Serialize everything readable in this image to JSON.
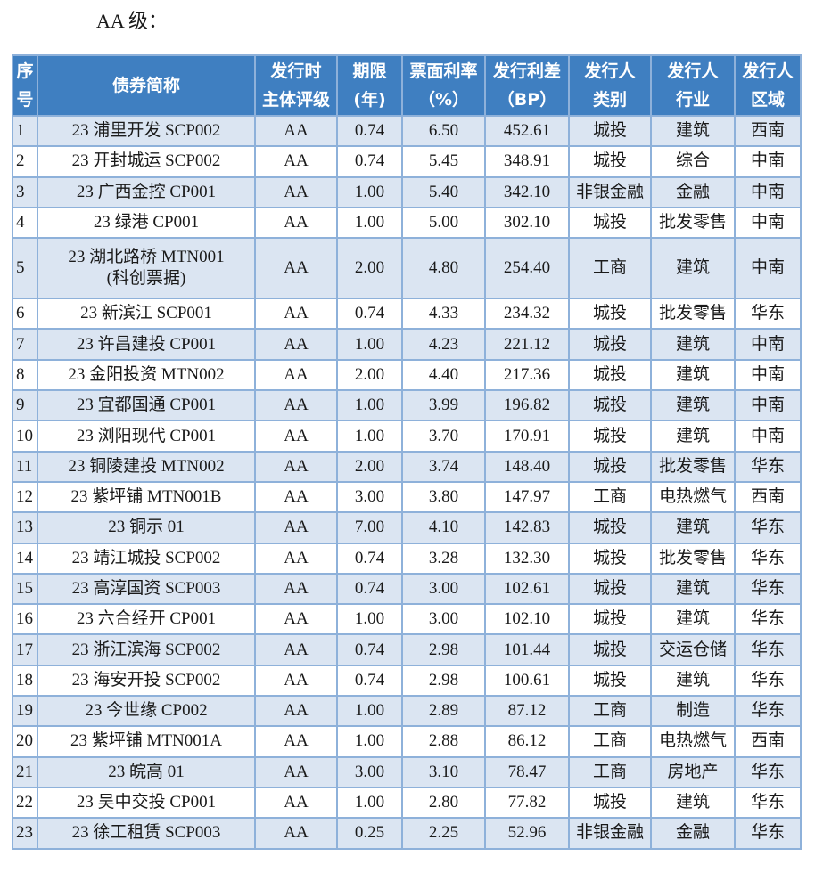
{
  "heading": "AA 级：",
  "table": {
    "headers": [
      {
        "line1": "序",
        "line2": "号"
      },
      {
        "line1": "债券简称",
        "line2": ""
      },
      {
        "line1": "发行时",
        "line2": "主体评级"
      },
      {
        "line1": "期限",
        "line2": "(年)"
      },
      {
        "line1": "票面利率",
        "line2": "（%）"
      },
      {
        "line1": "发行利差",
        "line2": "（BP）"
      },
      {
        "line1": "发行人",
        "line2": "类别"
      },
      {
        "line1": "发行人",
        "line2": "行业"
      },
      {
        "line1": "发行人",
        "line2": "区域"
      }
    ],
    "rows": [
      {
        "no": "1",
        "name": "23 浦里开发 SCP002",
        "name2": "",
        "rating": "AA",
        "term": "0.74",
        "coupon": "6.50",
        "spread": "452.61",
        "type": "城投",
        "industry": "建筑",
        "region": "西南"
      },
      {
        "no": "2",
        "name": "23 开封城运 SCP002",
        "name2": "",
        "rating": "AA",
        "term": "0.74",
        "coupon": "5.45",
        "spread": "348.91",
        "type": "城投",
        "industry": "综合",
        "region": "中南"
      },
      {
        "no": "3",
        "name": "23 广西金控 CP001",
        "name2": "",
        "rating": "AA",
        "term": "1.00",
        "coupon": "5.40",
        "spread": "342.10",
        "type": "非银金融",
        "industry": "金融",
        "region": "中南"
      },
      {
        "no": "4",
        "name": "23 绿港 CP001",
        "name2": "",
        "rating": "AA",
        "term": "1.00",
        "coupon": "5.00",
        "spread": "302.10",
        "type": "城投",
        "industry": "批发零售",
        "region": "中南"
      },
      {
        "no": "5",
        "name": "23 湖北路桥 MTN001",
        "name2": "(科创票据)",
        "rating": "AA",
        "term": "2.00",
        "coupon": "4.80",
        "spread": "254.40",
        "type": "工商",
        "industry": "建筑",
        "region": "中南"
      },
      {
        "no": "6",
        "name": "23 新滨江 SCP001",
        "name2": "",
        "rating": "AA",
        "term": "0.74",
        "coupon": "4.33",
        "spread": "234.32",
        "type": "城投",
        "industry": "批发零售",
        "region": "华东"
      },
      {
        "no": "7",
        "name": "23 许昌建投 CP001",
        "name2": "",
        "rating": "AA",
        "term": "1.00",
        "coupon": "4.23",
        "spread": "221.12",
        "type": "城投",
        "industry": "建筑",
        "region": "中南"
      },
      {
        "no": "8",
        "name": "23 金阳投资 MTN002",
        "name2": "",
        "rating": "AA",
        "term": "2.00",
        "coupon": "4.40",
        "spread": "217.36",
        "type": "城投",
        "industry": "建筑",
        "region": "中南"
      },
      {
        "no": "9",
        "name": "23 宜都国通 CP001",
        "name2": "",
        "rating": "AA",
        "term": "1.00",
        "coupon": "3.99",
        "spread": "196.82",
        "type": "城投",
        "industry": "建筑",
        "region": "中南"
      },
      {
        "no": "10",
        "name": "23 浏阳现代 CP001",
        "name2": "",
        "rating": "AA",
        "term": "1.00",
        "coupon": "3.70",
        "spread": "170.91",
        "type": "城投",
        "industry": "建筑",
        "region": "中南"
      },
      {
        "no": "11",
        "name": "23 铜陵建投 MTN002",
        "name2": "",
        "rating": "AA",
        "term": "2.00",
        "coupon": "3.74",
        "spread": "148.40",
        "type": "城投",
        "industry": "批发零售",
        "region": "华东"
      },
      {
        "no": "12",
        "name": "23 紫坪铺 MTN001B",
        "name2": "",
        "rating": "AA",
        "term": "3.00",
        "coupon": "3.80",
        "spread": "147.97",
        "type": "工商",
        "industry": "电热燃气",
        "region": "西南"
      },
      {
        "no": "13",
        "name": "23 铜示 01",
        "name2": "",
        "rating": "AA",
        "term": "7.00",
        "coupon": "4.10",
        "spread": "142.83",
        "type": "城投",
        "industry": "建筑",
        "region": "华东"
      },
      {
        "no": "14",
        "name": "23 靖江城投 SCP002",
        "name2": "",
        "rating": "AA",
        "term": "0.74",
        "coupon": "3.28",
        "spread": "132.30",
        "type": "城投",
        "industry": "批发零售",
        "region": "华东"
      },
      {
        "no": "15",
        "name": "23 高淳国资 SCP003",
        "name2": "",
        "rating": "AA",
        "term": "0.74",
        "coupon": "3.00",
        "spread": "102.61",
        "type": "城投",
        "industry": "建筑",
        "region": "华东"
      },
      {
        "no": "16",
        "name": "23 六合经开 CP001",
        "name2": "",
        "rating": "AA",
        "term": "1.00",
        "coupon": "3.00",
        "spread": "102.10",
        "type": "城投",
        "industry": "建筑",
        "region": "华东"
      },
      {
        "no": "17",
        "name": "23 浙江滨海 SCP002",
        "name2": "",
        "rating": "AA",
        "term": "0.74",
        "coupon": "2.98",
        "spread": "101.44",
        "type": "城投",
        "industry": "交运仓储",
        "region": "华东"
      },
      {
        "no": "18",
        "name": "23 海安开投 SCP002",
        "name2": "",
        "rating": "AA",
        "term": "0.74",
        "coupon": "2.98",
        "spread": "100.61",
        "type": "城投",
        "industry": "建筑",
        "region": "华东"
      },
      {
        "no": "19",
        "name": "23 今世缘 CP002",
        "name2": "",
        "rating": "AA",
        "term": "1.00",
        "coupon": "2.89",
        "spread": "87.12",
        "type": "工商",
        "industry": "制造",
        "region": "华东"
      },
      {
        "no": "20",
        "name": "23 紫坪铺 MTN001A",
        "name2": "",
        "rating": "AA",
        "term": "1.00",
        "coupon": "2.88",
        "spread": "86.12",
        "type": "工商",
        "industry": "电热燃气",
        "region": "西南"
      },
      {
        "no": "21",
        "name": "23 皖高 01",
        "name2": "",
        "rating": "AA",
        "term": "3.00",
        "coupon": "3.10",
        "spread": "78.47",
        "type": "工商",
        "industry": "房地产",
        "region": "华东"
      },
      {
        "no": "22",
        "name": "23 吴中交投 CP001",
        "name2": "",
        "rating": "AA",
        "term": "1.00",
        "coupon": "2.80",
        "spread": "77.82",
        "type": "城投",
        "industry": "建筑",
        "region": "华东"
      },
      {
        "no": "23",
        "name": "23 徐工租赁 SCP003",
        "name2": "",
        "rating": "AA",
        "term": "0.25",
        "coupon": "2.25",
        "spread": "52.96",
        "type": "非银金融",
        "industry": "金融",
        "region": "华东"
      }
    ]
  },
  "colors": {
    "header_bg": "#3f7fc1",
    "header_text": "#ffffff",
    "border": "#8eb1da",
    "shaded_row": "#dbe5f2",
    "plain_row": "#ffffff"
  }
}
